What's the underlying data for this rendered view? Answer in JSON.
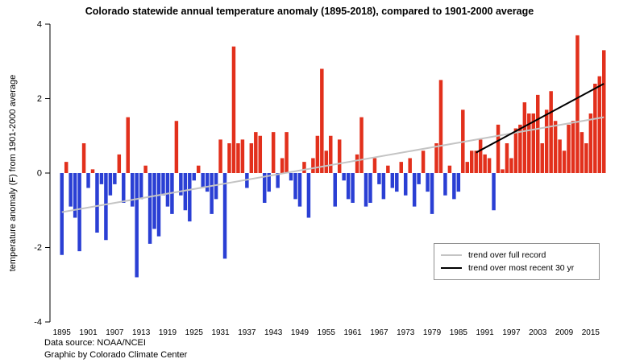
{
  "title": "Colorado statewide annual temperature anomaly (1895-2018), compared to 1901-2000 average",
  "footer": {
    "source_line": "Data source: NOAA/NCEI",
    "credit_line": "Graphic by Colorado Climate Center"
  },
  "chart_data": {
    "type": "bar",
    "title": "Colorado statewide annual temperature anomaly (1895-2018), compared to 1901-2000 average",
    "xlabel": "",
    "ylabel": "temperature anomaly (F) from 1901-2000 average",
    "ylim": [
      -4,
      4
    ],
    "yticks": [
      -4,
      -2,
      0,
      2,
      4
    ],
    "x_start": 1895,
    "x_end": 2018,
    "xticks": [
      1895,
      1901,
      1907,
      1913,
      1919,
      1925,
      1931,
      1937,
      1943,
      1949,
      1955,
      1961,
      1967,
      1973,
      1979,
      1985,
      1991,
      1997,
      2003,
      2009,
      2015
    ],
    "values": [
      -2.2,
      0.3,
      -0.9,
      -1.2,
      -2.1,
      0.8,
      -0.4,
      0.1,
      -1.6,
      -0.3,
      -1.8,
      -0.6,
      -0.3,
      0.5,
      -0.8,
      1.5,
      -0.9,
      -2.8,
      -0.7,
      0.2,
      -1.9,
      -1.5,
      -1.7,
      -0.6,
      -0.9,
      -1.1,
      1.4,
      -0.6,
      -1.0,
      -1.3,
      -0.2,
      0.2,
      -0.4,
      -0.5,
      -1.1,
      -0.7,
      0.9,
      -2.3,
      0.8,
      3.4,
      0.8,
      0.9,
      -0.4,
      0.8,
      1.1,
      1.0,
      -0.8,
      -0.5,
      1.1,
      -0.4,
      0.4,
      1.1,
      -0.2,
      -0.7,
      -0.9,
      0.3,
      -1.2,
      0.4,
      1.0,
      2.8,
      0.6,
      1.0,
      -0.9,
      0.9,
      -0.2,
      -0.7,
      -0.8,
      0.5,
      1.5,
      -0.9,
      -0.8,
      0.4,
      -0.3,
      -0.7,
      0.2,
      -0.4,
      -0.5,
      0.3,
      -0.6,
      0.4,
      -0.9,
      -0.3,
      0.6,
      -0.5,
      -1.1,
      0.8,
      2.5,
      -0.6,
      0.2,
      -0.7,
      -0.5,
      1.7,
      0.3,
      0.6,
      0.6,
      0.9,
      0.5,
      0.4,
      -1.0,
      1.3,
      0.1,
      0.8,
      0.4,
      1.2,
      1.3,
      1.9,
      1.6,
      1.6,
      2.1,
      0.8,
      1.7,
      2.2,
      1.4,
      0.9,
      0.6,
      1.3,
      1.4,
      3.7,
      1.1,
      0.8,
      1.6,
      2.4,
      2.6,
      3.3
    ],
    "positive_color": "#e2301c",
    "negative_color": "#2a3fd4",
    "axis_color": "#000000",
    "trend_full": {
      "x": [
        1895,
        2018
      ],
      "y": [
        -1.05,
        1.5
      ],
      "color": "#c4c4c4",
      "label": "trend over full record"
    },
    "trend_recent": {
      "x": [
        1989,
        2018
      ],
      "y": [
        0.55,
        2.4
      ],
      "color": "#000000",
      "label": "trend over most recent 30 yr"
    },
    "legend_position": "right-lower",
    "grid": false
  }
}
